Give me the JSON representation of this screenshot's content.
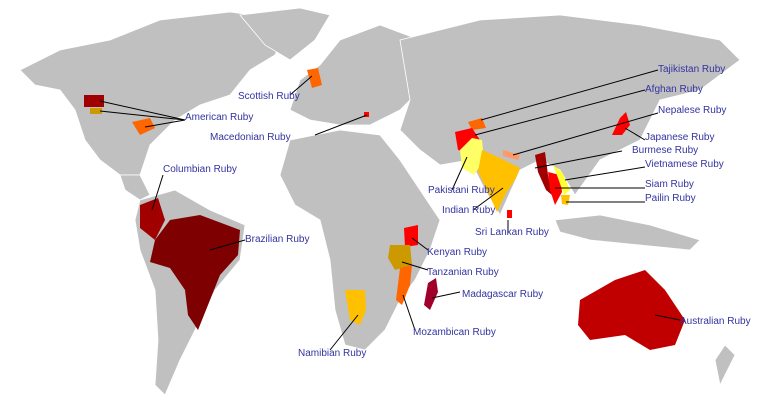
{
  "colors": {
    "land": "#c0c0c0",
    "label": "#3333a0",
    "red": "#ff0000",
    "dark_red": "#7f0000",
    "maroon": "#a00000",
    "orange": "#ff6600",
    "amber": "#ffc000",
    "yellow": "#ffff66",
    "salmon": "#ff9966",
    "ochre": "#cc9900",
    "crimson": "#a0002a"
  },
  "labels": {
    "tajikistan": "Tajikistan Ruby",
    "afghan": "Afghan Ruby",
    "nepalese": "Nepalese Ruby",
    "japanese": "Japanese Ruby",
    "burmese": "Burmese Ruby",
    "vietnamese": "Vietnamese Ruby",
    "siam": "Siam Ruby",
    "pailin": "Pailin Ruby",
    "pakistani": "Pakistani Ruby",
    "indian": "Indian Ruby",
    "sri_lankan": "Sri Lankan Ruby",
    "scottish": "Scottish Ruby",
    "american": "American Ruby",
    "macedonian": "Macedonian Ruby",
    "columbian": "Columbian Ruby",
    "brazilian": "Brazilian Ruby",
    "kenyan": "Kenyan Ruby",
    "tanzanian": "Tanzanian Ruby",
    "madagascar": "Madagascar Ruby",
    "mozambican": "Mozambican Ruby",
    "namibian": "Namibian Ruby",
    "australian": "Australian Ruby"
  }
}
